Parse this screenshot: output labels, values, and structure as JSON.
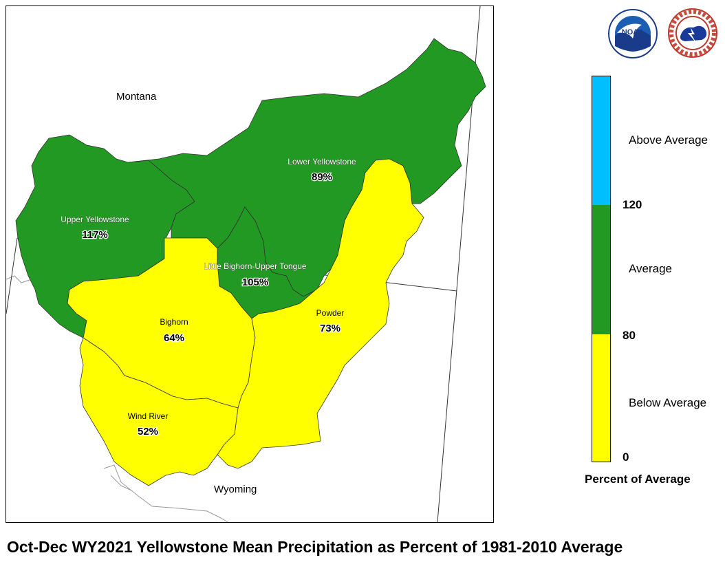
{
  "title": "Oct-Dec WY2021 Yellowstone Mean Precipitation as Percent of 1981-2010 Average",
  "states": {
    "montana": "Montana",
    "wyoming": "Wyoming"
  },
  "basins": [
    {
      "name": "Upper Yellowstone",
      "percent": "117%",
      "category": "Average"
    },
    {
      "name": "Lower Yellowstone",
      "percent": "89%",
      "category": "Average"
    },
    {
      "name": "Little Bighorn-Upper Tongue",
      "percent": "105%",
      "category": "Average"
    },
    {
      "name": "Bighorn",
      "percent": "64%",
      "category": "Below Average"
    },
    {
      "name": "Powder",
      "percent": "73%",
      "category": "Below Average"
    },
    {
      "name": "Wind River",
      "percent": "52%",
      "category": "Below Average"
    }
  ],
  "legend": {
    "title": "Percent of Average",
    "categories": [
      {
        "label": "Above Average",
        "color": "#00BFFF"
      },
      {
        "label": "Average",
        "color": "#229922"
      },
      {
        "label": "Below Average",
        "color": "#FFFF00"
      }
    ],
    "ticks": [
      "120",
      "80",
      "0"
    ]
  },
  "logos": {
    "noaa": {
      "icon": "noaa-logo",
      "text": "NOAA"
    },
    "nws": {
      "icon": "nws-logo",
      "text": "NATIONAL WEATHER SERVICE"
    }
  }
}
